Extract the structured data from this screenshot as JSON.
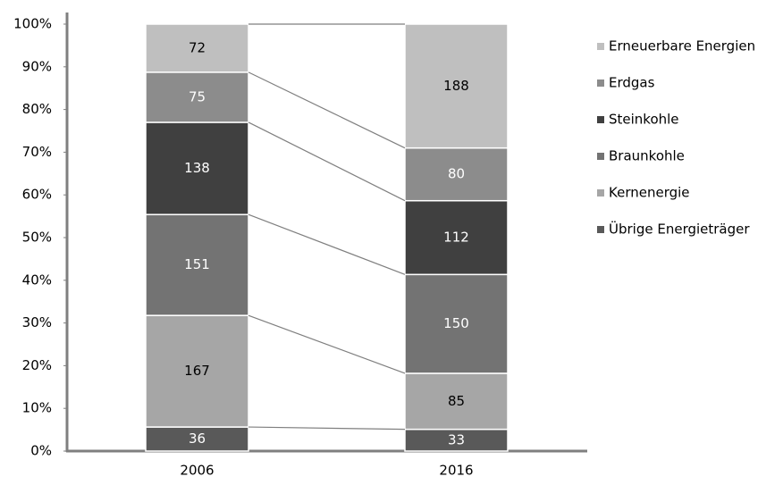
{
  "chart_data": {
    "type": "stacked_percent_bar",
    "categories": [
      "2006",
      "2016"
    ],
    "series": [
      {
        "name": "Übrige Energieträger",
        "color": "#595959",
        "values": [
          36,
          33
        ]
      },
      {
        "name": "Kernenergie",
        "color": "#a6a6a6",
        "values": [
          167,
          85
        ]
      },
      {
        "name": "Braunkohle",
        "color": "#737373",
        "values": [
          151,
          150
        ]
      },
      {
        "name": "Steinkohle",
        "color": "#404040",
        "values": [
          138,
          112
        ]
      },
      {
        "name": "Erdgas",
        "color": "#8c8c8c",
        "values": [
          75,
          80
        ]
      },
      {
        "name": "Erneuerbare Energien",
        "color": "#bfbfbf",
        "values": [
          72,
          188
        ]
      }
    ],
    "ylim": [
      0,
      100
    ],
    "yticks": [
      {
        "value": 0,
        "label": "0%"
      },
      {
        "value": 10,
        "label": "10%"
      },
      {
        "value": 20,
        "label": "20%"
      },
      {
        "value": 30,
        "label": "30%"
      },
      {
        "value": 40,
        "label": "40%"
      },
      {
        "value": 50,
        "label": "50%"
      },
      {
        "value": 60,
        "label": "60%"
      },
      {
        "value": 70,
        "label": "70%"
      },
      {
        "value": 80,
        "label": "80%"
      },
      {
        "value": 90,
        "label": "90%"
      },
      {
        "value": 100,
        "label": "100%"
      }
    ],
    "legend": "right"
  }
}
